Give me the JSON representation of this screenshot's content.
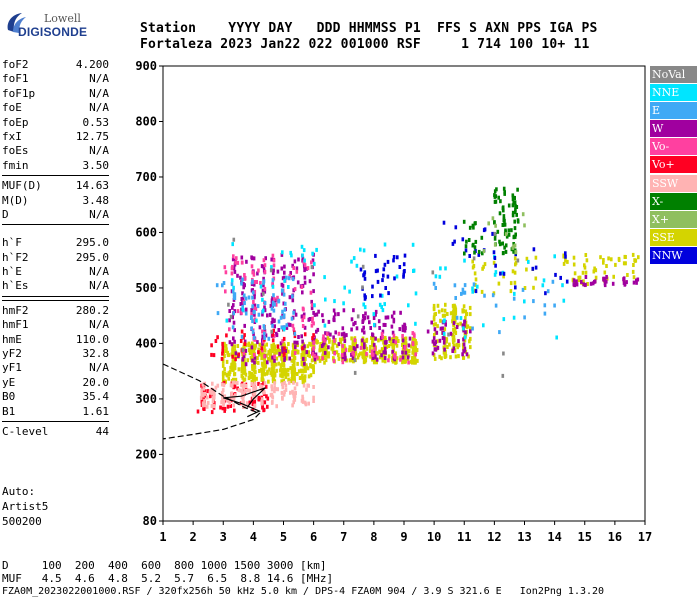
{
  "logo": {
    "line1": "Lowell",
    "line2": "DIGISONDE"
  },
  "header": {
    "row1": "Station    YYYY DAY   DDD HHMMSS P1  FFS S AXN PPS IGA PS",
    "row2": "Fortaleza 2023 Jan22 022 001000 RSF     1 714 100 10+ 11"
  },
  "params": {
    "group1": [
      {
        "label": "foF2",
        "value": "4.200"
      },
      {
        "label": "foF1",
        "value": "N/A"
      },
      {
        "label": "foF1p",
        "value": "N/A"
      },
      {
        "label": "foE",
        "value": "N/A"
      },
      {
        "label": "foEp",
        "value": "0.53"
      },
      {
        "label": "fxI",
        "value": "12.75"
      },
      {
        "label": "foEs",
        "value": "N/A"
      },
      {
        "label": "fmin",
        "value": "3.50"
      }
    ],
    "group2": [
      {
        "label": "MUF(D)",
        "value": "14.63"
      },
      {
        "label": "M(D)",
        "value": "3.48"
      },
      {
        "label": "D",
        "value": "N/A"
      }
    ],
    "group3": [
      {
        "label": "h`F",
        "value": "295.0"
      },
      {
        "label": "h`F2",
        "value": "295.0"
      },
      {
        "label": "h`E",
        "value": "N/A"
      },
      {
        "label": "h`Es",
        "value": "N/A"
      }
    ],
    "group4": [
      {
        "label": "hmF2",
        "value": "280.2"
      },
      {
        "label": "hmF1",
        "value": "N/A"
      },
      {
        "label": "hmE",
        "value": "110.0"
      },
      {
        "label": "yF2",
        "value": "32.8"
      },
      {
        "label": "yF1",
        "value": "N/A"
      },
      {
        "label": "yE",
        "value": "20.0"
      },
      {
        "label": "B0",
        "value": "35.4"
      },
      {
        "label": "B1",
        "value": "1.61"
      }
    ],
    "group5": [
      {
        "label": "C-level",
        "value": "44"
      }
    ]
  },
  "auto": {
    "line1": "Auto:",
    "line2": "Artist5",
    "line3": "500200"
  },
  "legend": [
    {
      "label": "NoVal",
      "color": "#888888"
    },
    {
      "label": "NNE",
      "color": "#00e5ff"
    },
    {
      "label": "E",
      "color": "#3fa9f5"
    },
    {
      "label": "W",
      "color": "#a0009f"
    },
    {
      "label": "Vo-",
      "color": "#ff40a0"
    },
    {
      "label": "Vo+",
      "color": "#ff0022"
    },
    {
      "label": "SSW",
      "color": "#ffb3b3"
    },
    {
      "label": "X-",
      "color": "#008000"
    },
    {
      "label": "X+",
      "color": "#8fbf5f"
    },
    {
      "label": "SSE",
      "color": "#d4d400"
    },
    {
      "label": "NNW",
      "color": "#0000dd"
    }
  ],
  "footer": {
    "d_row": "D     100  200  400  600  800 1000 1500 3000 [km]",
    "muf_row": "MUF   4.5  4.6  4.8  5.2  5.7  6.5  8.8 14.6 [MHz]",
    "file_row": "FZA0M_2023022001000.RSF / 320fx256h 50 kHz 5.0 km / DPS-4 FZA0M 904 / 3.9 S 321.6 E   Ion2Png 1.3.20"
  },
  "chart_data": {
    "type": "scatter",
    "xlim": [
      1,
      17
    ],
    "ylim": [
      80,
      900
    ],
    "x_ticks": [
      1,
      2,
      3,
      4,
      5,
      6,
      7,
      8,
      9,
      10,
      11,
      12,
      13,
      14,
      15,
      16,
      17
    ],
    "y_ticks": [
      80,
      200,
      300,
      400,
      500,
      600,
      700,
      800,
      900
    ],
    "grid": false,
    "legend_position": "right",
    "clusters": [
      {
        "series": "SSE",
        "x": [
          3.0,
          6.0
        ],
        "y": [
          330,
          400
        ],
        "n": 520
      },
      {
        "series": "SSE",
        "x": [
          6.0,
          9.5
        ],
        "y": [
          365,
          410
        ],
        "n": 380
      },
      {
        "series": "SSE",
        "x": [
          10.0,
          11.2
        ],
        "y": [
          370,
          470
        ],
        "n": 140
      },
      {
        "series": "SSE",
        "x": [
          14.3,
          16.8
        ],
        "y": [
          505,
          560
        ],
        "n": 60
      },
      {
        "series": "SSE",
        "x": [
          11.2,
          13.5
        ],
        "y": [
          480,
          560
        ],
        "n": 30
      },
      {
        "series": "W",
        "x": [
          3.2,
          6.0
        ],
        "y": [
          360,
          560
        ],
        "n": 210
      },
      {
        "series": "W",
        "x": [
          6.0,
          9.2
        ],
        "y": [
          370,
          460
        ],
        "n": 130
      },
      {
        "series": "W",
        "x": [
          9.8,
          11.2
        ],
        "y": [
          380,
          440
        ],
        "n": 45
      },
      {
        "series": "W",
        "x": [
          14.5,
          16.8
        ],
        "y": [
          505,
          520
        ],
        "n": 35
      },
      {
        "series": "Vo-",
        "x": [
          3.0,
          6.0
        ],
        "y": [
          360,
          560
        ],
        "n": 90
      },
      {
        "series": "Vo-",
        "x": [
          6.0,
          9.5
        ],
        "y": [
          365,
          420
        ],
        "n": 50
      },
      {
        "series": "Vo+",
        "x": [
          2.1,
          4.5
        ],
        "y": [
          275,
          330
        ],
        "n": 90
      },
      {
        "series": "Vo+",
        "x": [
          2.5,
          6.0
        ],
        "y": [
          370,
          430
        ],
        "n": 40
      },
      {
        "series": "SSW",
        "x": [
          2.2,
          6.0
        ],
        "y": [
          285,
          330
        ],
        "n": 170
      },
      {
        "series": "E",
        "x": [
          2.8,
          5.5
        ],
        "y": [
          400,
          520
        ],
        "n": 80
      },
      {
        "series": "E",
        "x": [
          10.0,
          14.0
        ],
        "y": [
          420,
          520
        ],
        "n": 25
      },
      {
        "series": "NNE",
        "x": [
          3.0,
          9.5
        ],
        "y": [
          420,
          580
        ],
        "n": 55
      },
      {
        "series": "NNE",
        "x": [
          10.0,
          14.5
        ],
        "y": [
          410,
          560
        ],
        "n": 30
      },
      {
        "series": "NNW",
        "x": [
          7.5,
          9.2
        ],
        "y": [
          480,
          560
        ],
        "n": 35
      },
      {
        "series": "NNW",
        "x": [
          10.0,
          14.5
        ],
        "y": [
          490,
          620
        ],
        "n": 30
      },
      {
        "series": "X-",
        "x": [
          12.0,
          12.8
        ],
        "y": [
          560,
          680
        ],
        "n": 75
      },
      {
        "series": "X-",
        "x": [
          11.0,
          11.6
        ],
        "y": [
          560,
          620
        ],
        "n": 18
      },
      {
        "series": "X+",
        "x": [
          11.5,
          13.0
        ],
        "y": [
          560,
          640
        ],
        "n": 12
      },
      {
        "series": "NoVal",
        "x": [
          3.0,
          14.0
        ],
        "y": [
          330,
          600
        ],
        "n": 20
      }
    ],
    "profile_curves": [
      {
        "style": "dashed",
        "points": [
          [
            1,
            363
          ],
          [
            2.2,
            333
          ],
          [
            3.0,
            305
          ],
          [
            3.7,
            285
          ],
          [
            4.2,
            274
          ],
          [
            4.0,
            263
          ],
          [
            3.0,
            245
          ],
          [
            2.0,
            236
          ],
          [
            1,
            228
          ]
        ]
      },
      {
        "style": "solid",
        "points": [
          [
            3.8,
            285
          ],
          [
            4.0,
            300
          ],
          [
            4.4,
            320
          ],
          [
            3.6,
            305
          ],
          [
            3.0,
            302
          ],
          [
            3.6,
            292
          ],
          [
            4.2,
            278
          ],
          [
            3.8,
            268
          ]
        ]
      }
    ]
  }
}
